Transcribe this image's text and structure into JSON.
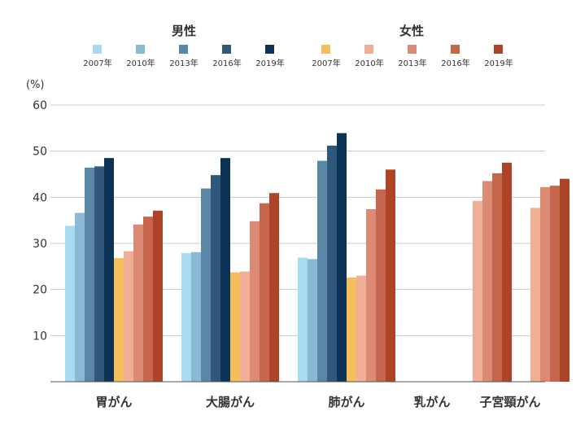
{
  "chart_data": {
    "type": "bar",
    "unit_label": "(%)",
    "ylim": [
      0,
      60
    ],
    "yticks": [
      10,
      20,
      30,
      40,
      50,
      60
    ],
    "grid": true,
    "legend_position": "top",
    "categories": [
      "胃がん",
      "大腸がん",
      "肺がん",
      "乳がん",
      "子宮頸がん"
    ],
    "legend_groups": [
      {
        "title": "男性",
        "years": [
          "2007年",
          "2010年",
          "2013年",
          "2016年",
          "2019年"
        ]
      },
      {
        "title": "女性",
        "years": [
          "2007年",
          "2010年",
          "2013年",
          "2016年",
          "2019年"
        ]
      }
    ],
    "male_colors": [
      "#a8dbf1",
      "#8bb8d4",
      "#5b87a6",
      "#2f587a",
      "#0c3356"
    ],
    "female_colors": [
      "#f7bd5a",
      "#f0ae96",
      "#dc8a74",
      "#c6664c",
      "#ad4428"
    ],
    "series": [
      {
        "group": "男性",
        "year": "2007年",
        "values": [
          33.8,
          27.9,
          26.9,
          null,
          null
        ]
      },
      {
        "group": "男性",
        "year": "2010年",
        "values": [
          36.6,
          28.1,
          26.6,
          null,
          null
        ]
      },
      {
        "group": "男性",
        "year": "2013年",
        "values": [
          46.4,
          41.9,
          47.9,
          null,
          null
        ]
      },
      {
        "group": "男性",
        "year": "2016年",
        "values": [
          46.7,
          44.8,
          51.2,
          null,
          null
        ]
      },
      {
        "group": "男性",
        "year": "2019年",
        "values": [
          48.5,
          48.5,
          53.9,
          null,
          null
        ]
      },
      {
        "group": "女性",
        "year": "2007年",
        "values": [
          26.8,
          23.7,
          22.6,
          null,
          null
        ]
      },
      {
        "group": "女性",
        "year": "2010年",
        "values": [
          28.3,
          23.9,
          23.0,
          39.2,
          37.7
        ]
      },
      {
        "group": "女性",
        "year": "2013年",
        "values": [
          34.1,
          34.8,
          37.4,
          43.5,
          42.2
        ]
      },
      {
        "group": "女性",
        "year": "2016年",
        "values": [
          35.8,
          38.7,
          41.7,
          45.2,
          42.5
        ]
      },
      {
        "group": "女性",
        "year": "2019年",
        "values": [
          37.1,
          40.9,
          46.0,
          47.5,
          44.0
        ]
      }
    ]
  }
}
